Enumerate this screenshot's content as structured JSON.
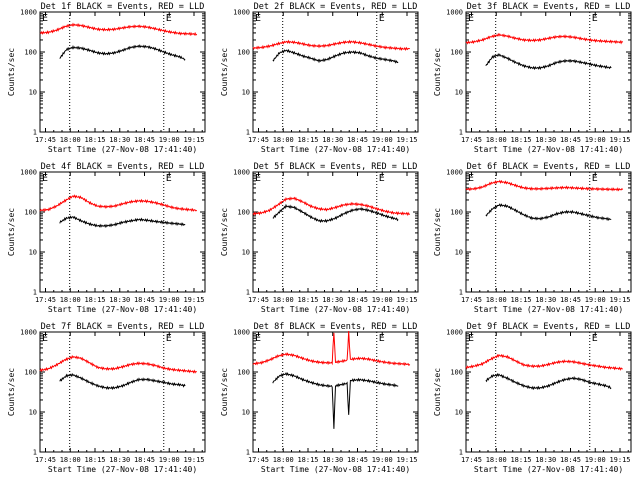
{
  "figure": {
    "panel_titles": [
      "Det 1f BLACK = Events, RED = LLD",
      "Det 2f BLACK = Events, RED = LLD",
      "Det 3f BLACK = Events, RED = LLD",
      "Det 4f BLACK = Events, RED = LLD",
      "Det 5f BLACK = Events, RED = LLD",
      "Det 6f BLACK = Events, RED = LLD",
      "Det 7f BLACK = Events, RED = LLD",
      "Det 8f BLACK = Events, RED = LLD",
      "Det 9f BLACK = Events, RED = LLD"
    ],
    "ylabel": "Counts/sec",
    "xlabel": "Start Time (27-Nov-08 17:41:40)",
    "x_tick_labels": [
      "17:45",
      "18:00",
      "18:15",
      "18:30",
      "18:45",
      "19:00",
      "19:15"
    ],
    "y_tick_labels": [
      "1",
      "10",
      "100",
      "1000"
    ],
    "interval_markers": [
      "E",
      "E"
    ],
    "colors": {
      "events": "#000000",
      "lld": "#ff0000",
      "marker_line": "#000000"
    }
  },
  "chart_data": [
    {
      "type": "line",
      "title": "Det 1f BLACK = Events, RED = LLD",
      "xlabel": "Start Time (27-Nov-08 17:41:40)",
      "ylabel": "Counts/sec",
      "x_unit": "minutes after 17:41:40",
      "xlim": [
        0,
        100
      ],
      "ylim": [
        1,
        1000
      ],
      "yscale": "log",
      "grid": false,
      "vlines": [
        18,
        75
      ],
      "series": [
        {
          "name": "Events",
          "color": "#000000",
          "x": [
            12,
            16,
            20,
            25,
            30,
            35,
            40,
            45,
            50,
            55,
            60,
            65,
            70,
            75,
            80,
            85,
            88
          ],
          "y": [
            70,
            115,
            130,
            125,
            110,
            95,
            90,
            95,
            110,
            130,
            140,
            135,
            120,
            100,
            85,
            75,
            65
          ]
        },
        {
          "name": "LLD",
          "color": "#ff0000",
          "x": [
            0,
            5,
            10,
            15,
            20,
            25,
            30,
            35,
            40,
            45,
            50,
            55,
            60,
            65,
            70,
            75,
            80,
            85,
            90,
            95
          ],
          "y": [
            300,
            310,
            350,
            430,
            480,
            460,
            410,
            370,
            360,
            370,
            400,
            430,
            440,
            420,
            380,
            340,
            310,
            290,
            285,
            280
          ]
        }
      ]
    },
    {
      "type": "line",
      "title": "Det 2f BLACK = Events, RED = LLD",
      "xlabel": "Start Time (27-Nov-08 17:41:40)",
      "ylabel": "Counts/sec",
      "x_unit": "minutes after 17:41:40",
      "xlim": [
        0,
        100
      ],
      "ylim": [
        1,
        1000
      ],
      "yscale": "log",
      "grid": false,
      "vlines": [
        18,
        75
      ],
      "series": [
        {
          "name": "Events",
          "color": "#000000",
          "x": [
            12,
            16,
            20,
            25,
            30,
            35,
            40,
            45,
            50,
            55,
            60,
            65,
            70,
            75,
            80,
            85,
            88
          ],
          "y": [
            60,
            95,
            110,
            95,
            80,
            70,
            60,
            65,
            80,
            95,
            100,
            95,
            80,
            70,
            65,
            60,
            55
          ]
        },
        {
          "name": "LLD",
          "color": "#ff0000",
          "x": [
            0,
            5,
            10,
            15,
            20,
            25,
            30,
            35,
            40,
            45,
            50,
            55,
            60,
            65,
            70,
            75,
            80,
            85,
            90,
            95
          ],
          "y": [
            125,
            130,
            140,
            160,
            180,
            175,
            160,
            145,
            140,
            145,
            160,
            175,
            180,
            170,
            155,
            140,
            130,
            125,
            120,
            120
          ]
        }
      ]
    },
    {
      "type": "line",
      "title": "Det 3f BLACK = Events, RED = LLD",
      "xlabel": "Start Time (27-Nov-08 17:41:40)",
      "ylabel": "Counts/sec",
      "x_unit": "minutes after 17:41:40",
      "xlim": [
        0,
        100
      ],
      "ylim": [
        1,
        1000
      ],
      "yscale": "log",
      "grid": false,
      "vlines": [
        18,
        75
      ],
      "series": [
        {
          "name": "Events",
          "color": "#000000",
          "x": [
            12,
            16,
            20,
            25,
            30,
            35,
            40,
            45,
            50,
            55,
            60,
            65,
            70,
            75,
            80,
            85,
            88
          ],
          "y": [
            45,
            75,
            85,
            70,
            55,
            45,
            40,
            40,
            45,
            55,
            60,
            60,
            55,
            50,
            45,
            42,
            40
          ]
        },
        {
          "name": "LLD",
          "color": "#ff0000",
          "x": [
            0,
            5,
            10,
            15,
            20,
            25,
            30,
            35,
            40,
            45,
            50,
            55,
            60,
            65,
            70,
            75,
            80,
            85,
            90,
            95
          ],
          "y": [
            170,
            180,
            200,
            240,
            270,
            250,
            220,
            200,
            195,
            200,
            220,
            240,
            245,
            235,
            215,
            200,
            190,
            185,
            180,
            175
          ]
        }
      ]
    },
    {
      "type": "line",
      "title": "Det 4f BLACK = Events, RED = LLD",
      "xlabel": "Start Time (27-Nov-08 17:41:40)",
      "ylabel": "Counts/sec",
      "x_unit": "minutes after 17:41:40",
      "xlim": [
        0,
        100
      ],
      "ylim": [
        1,
        1000
      ],
      "yscale": "log",
      "grid": false,
      "vlines": [
        18,
        75
      ],
      "series": [
        {
          "name": "Events",
          "color": "#000000",
          "x": [
            12,
            16,
            20,
            25,
            30,
            35,
            40,
            45,
            50,
            55,
            60,
            65,
            70,
            75,
            80,
            85,
            88
          ],
          "y": [
            55,
            70,
            75,
            60,
            50,
            45,
            45,
            48,
            55,
            60,
            65,
            62,
            58,
            55,
            52,
            50,
            48
          ]
        },
        {
          "name": "LLD",
          "color": "#ff0000",
          "x": [
            0,
            5,
            10,
            15,
            20,
            25,
            30,
            35,
            40,
            45,
            50,
            55,
            60,
            65,
            70,
            75,
            80,
            85,
            90,
            95
          ],
          "y": [
            110,
            115,
            140,
            190,
            250,
            230,
            170,
            140,
            135,
            140,
            160,
            180,
            190,
            185,
            170,
            150,
            130,
            120,
            115,
            110
          ]
        }
      ]
    },
    {
      "type": "line",
      "title": "Det 5f BLACK = Events, RED = LLD",
      "xlabel": "Start Time (27-Nov-08 17:41:40)",
      "ylabel": "Counts/sec",
      "x_unit": "minutes after 17:41:40",
      "xlim": [
        0,
        100
      ],
      "ylim": [
        1,
        1000
      ],
      "yscale": "log",
      "grid": false,
      "vlines": [
        18,
        75
      ],
      "series": [
        {
          "name": "Events",
          "color": "#000000",
          "x": [
            12,
            16,
            20,
            25,
            30,
            35,
            40,
            45,
            50,
            55,
            60,
            65,
            70,
            75,
            80,
            85,
            88
          ],
          "y": [
            70,
            100,
            140,
            130,
            100,
            75,
            60,
            60,
            70,
            90,
            110,
            120,
            110,
            95,
            80,
            70,
            65
          ]
        },
        {
          "name": "LLD",
          "color": "#ff0000",
          "x": [
            0,
            5,
            10,
            15,
            20,
            25,
            30,
            35,
            40,
            45,
            50,
            55,
            60,
            65,
            70,
            75,
            80,
            85,
            90,
            95
          ],
          "y": [
            90,
            95,
            110,
            150,
            210,
            220,
            180,
            140,
            120,
            115,
            130,
            150,
            160,
            155,
            140,
            120,
            105,
            95,
            92,
            90
          ]
        }
      ]
    },
    {
      "type": "line",
      "title": "Det 6f BLACK = Events, RED = LLD",
      "xlabel": "Start Time (27-Nov-08 17:41:40)",
      "ylabel": "Counts/sec",
      "x_unit": "minutes after 17:41:40",
      "xlim": [
        0,
        100
      ],
      "ylim": [
        1,
        1000
      ],
      "yscale": "log",
      "grid": false,
      "vlines": [
        18,
        75
      ],
      "series": [
        {
          "name": "Events",
          "color": "#000000",
          "x": [
            12,
            16,
            20,
            25,
            30,
            35,
            40,
            45,
            50,
            55,
            60,
            65,
            70,
            75,
            80,
            85,
            88
          ],
          "y": [
            80,
            120,
            150,
            140,
            110,
            85,
            70,
            68,
            75,
            90,
            100,
            100,
            90,
            80,
            72,
            68,
            65
          ]
        },
        {
          "name": "LLD",
          "color": "#ff0000",
          "x": [
            0,
            5,
            10,
            15,
            20,
            25,
            30,
            35,
            40,
            45,
            50,
            55,
            60,
            65,
            70,
            75,
            80,
            85,
            90,
            95
          ],
          "y": [
            370,
            380,
            420,
            520,
            580,
            540,
            460,
            400,
            380,
            380,
            390,
            400,
            410,
            400,
            390,
            380,
            375,
            370,
            368,
            365
          ]
        }
      ]
    },
    {
      "type": "line",
      "title": "Det 7f BLACK = Events, RED = LLD",
      "xlabel": "Start Time (27-Nov-08 17:41:40)",
      "ylabel": "Counts/sec",
      "x_unit": "minutes after 17:41:40",
      "xlim": [
        0,
        100
      ],
      "ylim": [
        1,
        1000
      ],
      "yscale": "log",
      "grid": false,
      "vlines": [
        18,
        75
      ],
      "series": [
        {
          "name": "Events",
          "color": "#000000",
          "x": [
            12,
            16,
            20,
            25,
            30,
            35,
            40,
            45,
            50,
            55,
            60,
            65,
            70,
            75,
            80,
            85,
            88
          ],
          "y": [
            60,
            80,
            85,
            70,
            55,
            45,
            40,
            40,
            45,
            55,
            65,
            65,
            60,
            55,
            50,
            48,
            45
          ]
        },
        {
          "name": "LLD",
          "color": "#ff0000",
          "x": [
            0,
            5,
            10,
            15,
            20,
            25,
            30,
            35,
            40,
            45,
            50,
            55,
            60,
            65,
            70,
            75,
            80,
            85,
            90,
            95
          ],
          "y": [
            110,
            120,
            150,
            200,
            240,
            220,
            170,
            130,
            120,
            120,
            135,
            155,
            165,
            160,
            145,
            125,
            115,
            110,
            105,
            100
          ]
        }
      ]
    },
    {
      "type": "line",
      "title": "Det 8f BLACK = Events, RED = LLD",
      "xlabel": "Start Time (27-Nov-08 17:41:40)",
      "ylabel": "Counts/sec",
      "x_unit": "minutes after 17:41:40",
      "xlim": [
        0,
        100
      ],
      "ylim": [
        1,
        1000
      ],
      "yscale": "log",
      "grid": false,
      "vlines": [
        18,
        75
      ],
      "series": [
        {
          "name": "Events",
          "color": "#000000",
          "x": [
            12,
            16,
            20,
            25,
            30,
            35,
            40,
            45,
            48,
            49,
            50,
            55,
            57,
            58,
            59,
            60,
            65,
            70,
            75,
            80,
            85,
            88
          ],
          "y": [
            55,
            80,
            90,
            80,
            65,
            55,
            48,
            45,
            44,
            4,
            45,
            50,
            52,
            8,
            60,
            62,
            64,
            60,
            55,
            50,
            47,
            45
          ]
        },
        {
          "name": "LLD",
          "color": "#ff0000",
          "x": [
            0,
            5,
            10,
            15,
            20,
            25,
            30,
            35,
            40,
            45,
            48,
            49,
            50,
            55,
            57,
            58,
            59,
            60,
            65,
            70,
            75,
            80,
            85,
            90,
            95
          ],
          "y": [
            160,
            170,
            200,
            250,
            280,
            260,
            220,
            190,
            175,
            170,
            170,
            1000,
            175,
            190,
            195,
            1000,
            205,
            210,
            220,
            210,
            190,
            175,
            165,
            160,
            155
          ]
        }
      ]
    },
    {
      "type": "line",
      "title": "Det 9f BLACK = Events, RED = LLD",
      "xlabel": "Start Time (27-Nov-08 17:41:40)",
      "ylabel": "Counts/sec",
      "x_unit": "minutes after 17:41:40",
      "xlim": [
        0,
        100
      ],
      "ylim": [
        1,
        1000
      ],
      "yscale": "log",
      "grid": false,
      "vlines": [
        18,
        75
      ],
      "series": [
        {
          "name": "Events",
          "color": "#000000",
          "x": [
            12,
            16,
            20,
            25,
            30,
            35,
            40,
            45,
            50,
            55,
            60,
            65,
            70,
            75,
            80,
            85,
            88
          ],
          "y": [
            60,
            80,
            85,
            70,
            55,
            45,
            40,
            40,
            45,
            55,
            65,
            70,
            65,
            55,
            50,
            45,
            40
          ]
        },
        {
          "name": "LLD",
          "color": "#ff0000",
          "x": [
            0,
            5,
            10,
            15,
            20,
            25,
            30,
            35,
            40,
            45,
            50,
            55,
            60,
            65,
            70,
            75,
            80,
            85,
            90,
            95
          ],
          "y": [
            130,
            140,
            160,
            210,
            260,
            240,
            190,
            150,
            140,
            140,
            155,
            175,
            185,
            180,
            165,
            150,
            140,
            130,
            125,
            120
          ]
        }
      ]
    }
  ]
}
